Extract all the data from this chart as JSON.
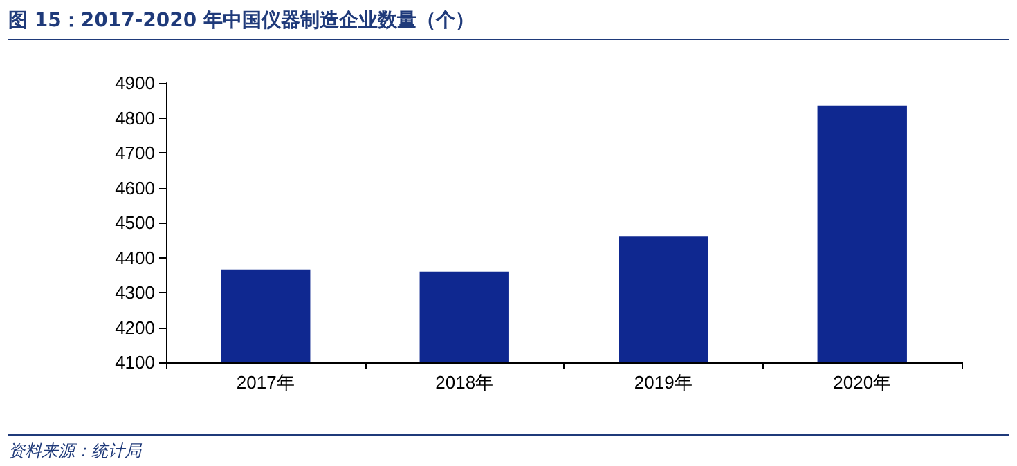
{
  "chart_data": {
    "type": "bar",
    "title": "图 15：2017-2020 年中国仪器制造企业数量（个）",
    "categories": [
      "2017年",
      "2018年",
      "2019年",
      "2020年"
    ],
    "values": [
      4366,
      4360,
      4460,
      4835
    ],
    "color": "#0f2890",
    "ylim": [
      4100,
      4900
    ],
    "yticks": [
      4100,
      4200,
      4300,
      4400,
      4500,
      4600,
      4700,
      4800,
      4900
    ],
    "grid": false,
    "annotations": [
      "资料来源：统计局"
    ]
  }
}
